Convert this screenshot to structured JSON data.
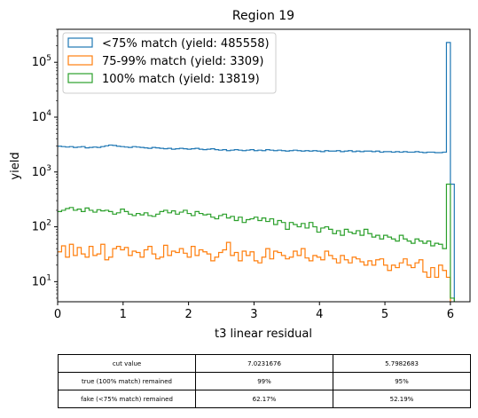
{
  "chart_data": {
    "type": "histogram-step",
    "title": "Region 19",
    "xlabel": "t3 linear residual",
    "ylabel": "yield",
    "yscale": "log",
    "xlim": [
      0,
      6.3
    ],
    "ylim": [
      4.3,
      400000
    ],
    "x_ticks": [
      0,
      1,
      2,
      3,
      4,
      5,
      6
    ],
    "y_ticks": [
      {
        "value": 10,
        "label": "10",
        "exp": "1"
      },
      {
        "value": 100,
        "label": "10",
        "exp": "2"
      },
      {
        "value": 1000,
        "label": "10",
        "exp": "3"
      },
      {
        "value": 10000,
        "label": "10",
        "exp": "4"
      },
      {
        "value": 100000,
        "label": "10",
        "exp": "5"
      }
    ],
    "grid": false,
    "legend_position": "top-left",
    "bin_width": 0.06,
    "series": [
      {
        "name": "<75% match (yield: 485558)",
        "color": "#1f77b4",
        "values": [
          2950,
          2900,
          2850,
          2900,
          2800,
          2850,
          2900,
          2750,
          2800,
          2850,
          2800,
          2900,
          3000,
          3100,
          3050,
          2950,
          2900,
          2850,
          2800,
          2900,
          2850,
          2800,
          2750,
          2700,
          2800,
          2750,
          2700,
          2650,
          2700,
          2600,
          2650,
          2700,
          2650,
          2600,
          2650,
          2700,
          2600,
          2550,
          2600,
          2650,
          2550,
          2500,
          2550,
          2450,
          2500,
          2550,
          2500,
          2450,
          2500,
          2550,
          2450,
          2500,
          2450,
          2550,
          2500,
          2450,
          2500,
          2450,
          2400,
          2450,
          2500,
          2450,
          2400,
          2450,
          2400,
          2450,
          2400,
          2350,
          2450,
          2400,
          2400,
          2450,
          2350,
          2400,
          2450,
          2350,
          2400,
          2350,
          2400,
          2400,
          2350,
          2400,
          2300,
          2350,
          2350,
          2300,
          2350,
          2300,
          2350,
          2300,
          2300,
          2350,
          2300,
          2250,
          2300,
          2300,
          2250,
          2250,
          2300,
          230000,
          600
        ]
      },
      {
        "name": "75-99% match (yield: 3309)",
        "color": "#ff7f0e",
        "values": [
          35,
          45,
          28,
          48,
          30,
          42,
          32,
          28,
          44,
          30,
          32,
          48,
          25,
          28,
          40,
          44,
          38,
          42,
          30,
          36,
          34,
          28,
          38,
          44,
          32,
          26,
          28,
          46,
          30,
          36,
          34,
          40,
          33,
          28,
          44,
          30,
          38,
          35,
          32,
          24,
          28,
          34,
          38,
          52,
          30,
          34,
          24,
          36,
          30,
          35,
          24,
          22,
          28,
          40,
          26,
          36,
          34,
          30,
          26,
          28,
          36,
          30,
          40,
          27,
          24,
          30,
          28,
          25,
          36,
          30,
          26,
          22,
          30,
          25,
          22,
          28,
          26,
          23,
          20,
          24,
          20,
          25,
          26,
          20,
          16,
          20,
          18,
          22,
          26,
          20,
          18,
          22,
          25,
          15,
          12,
          18,
          12,
          20,
          16,
          12,
          4
        ]
      },
      {
        "name": "100% match (yield: 13819)",
        "color": "#2ca02c",
        "values": [
          190,
          200,
          215,
          225,
          200,
          210,
          190,
          220,
          200,
          185,
          205,
          195,
          200,
          190,
          170,
          180,
          210,
          190,
          170,
          160,
          175,
          165,
          180,
          160,
          155,
          170,
          190,
          200,
          180,
          195,
          170,
          185,
          200,
          175,
          160,
          190,
          175,
          165,
          170,
          150,
          140,
          160,
          170,
          145,
          155,
          130,
          150,
          120,
          135,
          140,
          150,
          130,
          145,
          125,
          140,
          110,
          130,
          120,
          90,
          120,
          110,
          100,
          115,
          95,
          120,
          100,
          80,
          95,
          100,
          90,
          75,
          85,
          70,
          90,
          80,
          75,
          85,
          70,
          90,
          75,
          65,
          70,
          60,
          70,
          65,
          60,
          55,
          70,
          60,
          55,
          50,
          60,
          55,
          50,
          55,
          45,
          50,
          48,
          40,
          600,
          5
        ]
      }
    ],
    "table": {
      "rows": [
        [
          "cut value",
          "7.0231676",
          "5.7982683"
        ],
        [
          "true (100% match) remained",
          "99%",
          "95%"
        ],
        [
          "fake (<75% match) remained",
          "62.17%",
          "52.19%"
        ]
      ]
    }
  }
}
